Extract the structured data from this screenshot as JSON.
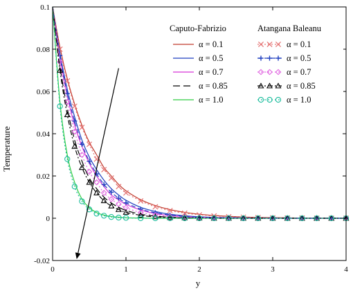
{
  "chart_data": {
    "type": "line",
    "title": "",
    "xlabel": "y",
    "ylabel": "Temperature",
    "xlim": [
      0,
      4
    ],
    "ylim": [
      -0.02,
      0.1
    ],
    "xticks": [
      "0",
      "1",
      "2",
      "3",
      "4"
    ],
    "yticks": [
      "-0.02",
      "0",
      "0.02",
      "0.04",
      "0.06",
      "0.08",
      "0.1"
    ],
    "grid": false,
    "legend": {
      "placement": "top-right",
      "groups": [
        {
          "title": "Caputo-Fabrizio",
          "entries": [
            "α = 0.1",
            "α = 0.5",
            "α = 0.7",
            "α = 0.85",
            "α = 1.0"
          ]
        },
        {
          "title": "Atangana Baleanu",
          "entries": [
            "α = 0.1",
            "α = 0.5",
            "α = 0.7",
            "α = 0.85",
            "α = 1.0"
          ]
        }
      ]
    },
    "x": [
      0,
      0.1,
      0.2,
      0.3,
      0.4,
      0.5,
      0.6,
      0.7,
      0.8,
      0.9,
      1.0,
      1.2,
      1.4,
      1.6,
      1.8,
      2.0,
      2.2,
      2.4,
      2.6,
      2.8,
      3.0,
      3.2,
      3.4,
      3.6,
      3.8,
      4.0
    ],
    "series": [
      {
        "name": "α = 0.1",
        "model": "Caputo-Fabrizio",
        "color": "#c0392b",
        "dash": "solid",
        "values": [
          0.1,
          0.081,
          0.066,
          0.054,
          0.044,
          0.036,
          0.03,
          0.024,
          0.02,
          0.016,
          0.013,
          0.0088,
          0.006,
          0.0041,
          0.0028,
          0.0019,
          0.0013,
          0.0009,
          0.0006,
          0.0004,
          0.0003,
          0.0002,
          0.0001,
          0.0001,
          0.0,
          0.0
        ]
      },
      {
        "name": "α = 0.5",
        "model": "Caputo-Fabrizio",
        "color": "#1f3fbf",
        "dash": "solid",
        "values": [
          0.1,
          0.078,
          0.061,
          0.048,
          0.037,
          0.029,
          0.023,
          0.018,
          0.014,
          0.011,
          0.0085,
          0.0052,
          0.0032,
          0.0019,
          0.0012,
          0.0007,
          0.0004,
          0.0003,
          0.0002,
          0.0001,
          0.0001,
          0.0,
          0.0,
          0.0,
          0.0,
          0.0
        ]
      },
      {
        "name": "α = 0.7",
        "model": "Caputo-Fabrizio",
        "color": "#d633d6",
        "dash": "solid",
        "values": [
          0.1,
          0.076,
          0.058,
          0.044,
          0.034,
          0.026,
          0.02,
          0.015,
          0.011,
          0.0087,
          0.0066,
          0.0039,
          0.0022,
          0.0013,
          0.0008,
          0.0005,
          0.0003,
          0.0002,
          0.0001,
          0.0001,
          0.0,
          0.0,
          0.0,
          0.0,
          0.0,
          0.0
        ]
      },
      {
        "name": "α = 0.85",
        "model": "Caputo-Fabrizio",
        "color": "#000000",
        "dash": "longdash",
        "values": [
          0.1,
          0.072,
          0.052,
          0.037,
          0.027,
          0.019,
          0.014,
          0.01,
          0.0072,
          0.0052,
          0.0037,
          0.0019,
          0.001,
          0.0005,
          0.0003,
          0.0001,
          0.0001,
          0.0,
          0.0,
          0.0,
          0.0,
          0.0,
          0.0,
          0.0,
          0.0,
          0.0
        ]
      },
      {
        "name": "α = 1.0",
        "model": "Caputo-Fabrizio",
        "color": "#2ecc40",
        "dash": "solid",
        "values": [
          0.1,
          0.055,
          0.03,
          0.017,
          0.0091,
          0.005,
          0.0027,
          0.0015,
          0.0008,
          0.0005,
          0.0002,
          0.0001,
          0.0,
          0.0,
          0.0,
          0.0,
          0.0,
          0.0,
          0.0,
          0.0,
          0.0,
          0.0,
          0.0,
          0.0,
          0.0,
          0.0
        ]
      },
      {
        "name": "α = 0.1",
        "model": "Atangana Baleanu",
        "color": "#e57373",
        "dash": "dotted",
        "marker": "x",
        "values": [
          0.1,
          0.08,
          0.065,
          0.053,
          0.043,
          0.035,
          0.028,
          0.023,
          0.019,
          0.015,
          0.012,
          0.0082,
          0.0054,
          0.0036,
          0.0024,
          0.0016,
          0.0011,
          0.0007,
          0.0005,
          0.0003,
          0.0002,
          0.0001,
          0.0001,
          0.0,
          0.0,
          0.0
        ]
      },
      {
        "name": "α = 0.5",
        "model": "Atangana Baleanu",
        "color": "#1f3fbf",
        "dash": "dashed",
        "marker": "+",
        "values": [
          0.1,
          0.077,
          0.059,
          0.046,
          0.035,
          0.027,
          0.021,
          0.016,
          0.0123,
          0.0095,
          0.0073,
          0.0043,
          0.0026,
          0.0015,
          0.0009,
          0.0005,
          0.0003,
          0.0002,
          0.0001,
          0.0001,
          0.0,
          0.0,
          0.0,
          0.0,
          0.0,
          0.0
        ]
      },
      {
        "name": "α = 0.7",
        "model": "Atangana Baleanu",
        "color": "#e066e0",
        "dash": "dotted",
        "marker": "diamond",
        "values": [
          0.1,
          0.074,
          0.055,
          0.041,
          0.03,
          0.022,
          0.017,
          0.012,
          0.009,
          0.0067,
          0.005,
          0.0027,
          0.0015,
          0.0008,
          0.0005,
          0.0003,
          0.0001,
          0.0001,
          0.0,
          0.0,
          0.0,
          0.0,
          0.0,
          0.0,
          0.0,
          0.0
        ]
      },
      {
        "name": "α = 0.85",
        "model": "Atangana Baleanu",
        "color": "#000000",
        "dash": "dashdot",
        "marker": "triangle",
        "values": [
          0.1,
          0.07,
          0.049,
          0.034,
          0.024,
          0.017,
          0.012,
          0.0083,
          0.0058,
          0.0041,
          0.0028,
          0.0014,
          0.0007,
          0.0003,
          0.0002,
          0.0001,
          0.0,
          0.0,
          0.0,
          0.0,
          0.0,
          0.0,
          0.0,
          0.0,
          0.0,
          0.0
        ]
      },
      {
        "name": "α = 1.0",
        "model": "Atangana Baleanu",
        "color": "#1abc9c",
        "dash": "dotted",
        "marker": "circle",
        "values": [
          0.1,
          0.053,
          0.028,
          0.015,
          0.008,
          0.0042,
          0.0022,
          0.0012,
          0.0006,
          0.0003,
          0.0002,
          0.0,
          0.0,
          0.0,
          0.0,
          0.0,
          0.0,
          0.0,
          0.0,
          0.0,
          0.0,
          0.0,
          0.0,
          0.0,
          0.0,
          0.0
        ]
      }
    ],
    "annotations": [
      {
        "type": "arrow",
        "meaning": "increasing α",
        "from": [
          0.9,
          0.071
        ],
        "to": [
          0.33,
          -0.019
        ]
      }
    ]
  }
}
